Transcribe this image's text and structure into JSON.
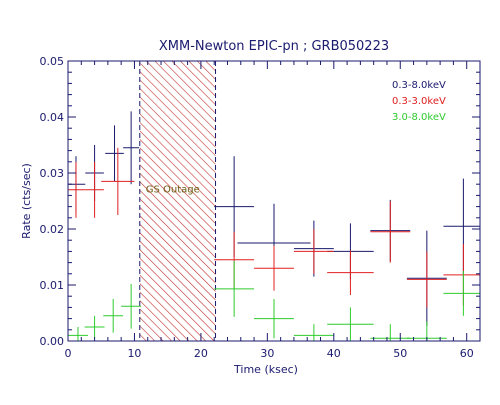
{
  "chart_data": {
    "type": "scatter",
    "title": "XMM-Newton EPIC-pn ; GRB050223",
    "xlabel": "Time (ksec)",
    "ylabel": "Rate (cts/sec)",
    "xlim": [
      0,
      62
    ],
    "ylim": [
      0,
      0.05
    ],
    "x_ticks": [
      "0",
      "10",
      "20",
      "30",
      "40",
      "50",
      "60"
    ],
    "y_ticks": [
      "0.00",
      "0.01",
      "0.02",
      "0.03",
      "0.04",
      "0.05"
    ],
    "grid": false,
    "legend_position": "top-right",
    "error_bars": true,
    "series": [
      {
        "name": "0.3-8.0keV",
        "color": "#1a1a6e",
        "points": [
          {
            "x": 1.2,
            "xerr": 1.4,
            "y": 0.028,
            "yerr": 0.005
          },
          {
            "x": 4.0,
            "xerr": 1.4,
            "y": 0.03,
            "yerr": 0.005
          },
          {
            "x": 7.0,
            "xerr": 1.4,
            "y": 0.0335,
            "yerr": 0.005
          },
          {
            "x": 9.5,
            "xerr": 1.2,
            "y": 0.0345,
            "yerr": 0.0065
          },
          {
            "x": 25.0,
            "xerr": 3.0,
            "y": 0.024,
            "yerr": 0.009
          },
          {
            "x": 31.0,
            "xerr": 5.5,
            "y": 0.0175,
            "yerr": 0.007
          },
          {
            "x": 37.0,
            "xerr": 3.0,
            "y": 0.0165,
            "yerr": 0.005
          },
          {
            "x": 42.5,
            "xerr": 3.5,
            "y": 0.016,
            "yerr": 0.005
          },
          {
            "x": 48.5,
            "xerr": 3.0,
            "y": 0.0197,
            "yerr": 0.0055
          },
          {
            "x": 54.0,
            "xerr": 3.0,
            "y": 0.0112,
            "yerr": 0.0085
          },
          {
            "x": 59.5,
            "xerr": 3.0,
            "y": 0.0205,
            "yerr": 0.0085
          }
        ]
      },
      {
        "name": "0.3-3.0keV",
        "color": "#e02020",
        "points": [
          {
            "x": 1.2,
            "xerr": 1.4,
            "y": 0.027,
            "yerr": 0.005
          },
          {
            "x": 4.0,
            "xerr": 1.4,
            "y": 0.027,
            "yerr": 0.005
          },
          {
            "x": 7.5,
            "xerr": 2.5,
            "y": 0.0285,
            "yerr": 0.006
          },
          {
            "x": 25.0,
            "xerr": 3.0,
            "y": 0.0145,
            "yerr": 0.005
          },
          {
            "x": 31.0,
            "xerr": 3.0,
            "y": 0.013,
            "yerr": 0.004
          },
          {
            "x": 37.0,
            "xerr": 3.0,
            "y": 0.016,
            "yerr": 0.004
          },
          {
            "x": 42.5,
            "xerr": 3.5,
            "y": 0.0122,
            "yerr": 0.004
          },
          {
            "x": 48.5,
            "xerr": 3.0,
            "y": 0.0195,
            "yerr": 0.0055
          },
          {
            "x": 54.0,
            "xerr": 3.0,
            "y": 0.011,
            "yerr": 0.005
          },
          {
            "x": 59.5,
            "xerr": 3.0,
            "y": 0.0118,
            "yerr": 0.0055
          }
        ]
      },
      {
        "name": "3.0-8.0keV",
        "color": "#2ecc2e",
        "points": [
          {
            "x": 1.5,
            "xerr": 1.5,
            "y": 0.001,
            "yerr": 0.0015
          },
          {
            "x": 4.0,
            "xerr": 1.5,
            "y": 0.0025,
            "yerr": 0.002
          },
          {
            "x": 6.8,
            "xerr": 1.5,
            "y": 0.0045,
            "yerr": 0.003
          },
          {
            "x": 9.5,
            "xerr": 1.5,
            "y": 0.0062,
            "yerr": 0.004
          },
          {
            "x": 25.0,
            "xerr": 3.0,
            "y": 0.0093,
            "yerr": 0.005
          },
          {
            "x": 31.0,
            "xerr": 3.0,
            "y": 0.004,
            "yerr": 0.0035
          },
          {
            "x": 37.0,
            "xerr": 3.0,
            "y": 0.001,
            "yerr": 0.002
          },
          {
            "x": 42.5,
            "xerr": 3.5,
            "y": 0.003,
            "yerr": 0.003
          },
          {
            "x": 48.5,
            "xerr": 3.0,
            "y": 0.0005,
            "yerr": 0.0025
          },
          {
            "x": 54.0,
            "xerr": 3.0,
            "y": 0.0005,
            "yerr": 0.003
          },
          {
            "x": 59.5,
            "xerr": 3.0,
            "y": 0.0085,
            "yerr": 0.004
          }
        ]
      }
    ],
    "annotations": [
      {
        "type": "shaded-region",
        "label": "GS Outage",
        "x_start": 10.8,
        "x_end": 22.2,
        "fill": "hatched",
        "color": "#a01818",
        "label_color": "#6b5a10"
      }
    ]
  },
  "colors": {
    "axis": "#1a1a6e",
    "title": "#1a1a6e"
  }
}
